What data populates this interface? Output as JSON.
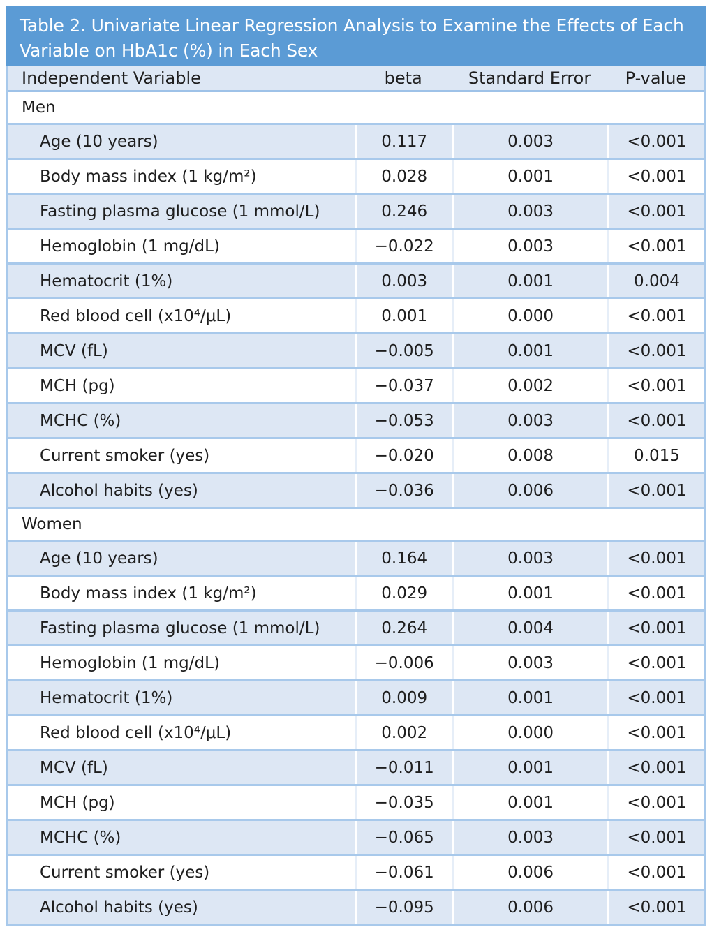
{
  "table": {
    "title": "Table 2. Univariate Linear Regression Analysis to Examine the Effects of Each Variable on HbA1c (%) in Each Sex",
    "headers": [
      "Independent Variable",
      "beta",
      "Standard Error",
      "P-value"
    ],
    "sections": [
      {
        "label": "Men",
        "rows": [
          {
            "variable": "Age (10 years)",
            "beta": "0.117",
            "se": "0.003",
            "p": "<0.001"
          },
          {
            "variable": "Body mass index (1 kg/m²)",
            "beta": "0.028",
            "se": "0.001",
            "p": "<0.001"
          },
          {
            "variable": "Fasting plasma glucose (1 mmol/L)",
            "beta": "0.246",
            "se": "0.003",
            "p": "<0.001"
          },
          {
            "variable": "Hemoglobin (1 mg/dL)",
            "beta": "−0.022",
            "se": "0.003",
            "p": "<0.001"
          },
          {
            "variable": "Hematocrit (1%)",
            "beta": "0.003",
            "se": "0.001",
            "p": "0.004"
          },
          {
            "variable": "Red blood cell (x10⁴/μL)",
            "beta": "0.001",
            "se": "0.000",
            "p": "<0.001"
          },
          {
            "variable": "MCV (fL)",
            "beta": "−0.005",
            "se": "0.001",
            "p": "<0.001"
          },
          {
            "variable": "MCH (pg)",
            "beta": "−0.037",
            "se": "0.002",
            "p": "<0.001"
          },
          {
            "variable": "MCHC (%)",
            "beta": "−0.053",
            "se": "0.003",
            "p": "<0.001"
          },
          {
            "variable": "Current smoker (yes)",
            "beta": "−0.020",
            "se": "0.008",
            "p": "0.015"
          },
          {
            "variable": "Alcohol habits (yes)",
            "beta": "−0.036",
            "se": "0.006",
            "p": "<0.001"
          }
        ]
      },
      {
        "label": "Women",
        "rows": [
          {
            "variable": "Age (10 years)",
            "beta": "0.164",
            "se": "0.003",
            "p": "<0.001"
          },
          {
            "variable": "Body mass index (1 kg/m²)",
            "beta": "0.029",
            "se": "0.001",
            "p": "<0.001"
          },
          {
            "variable": "Fasting plasma glucose (1 mmol/L)",
            "beta": "0.264",
            "se": "0.004",
            "p": "<0.001"
          },
          {
            "variable": "Hemoglobin (1 mg/dL)",
            "beta": "−0.006",
            "se": "0.003",
            "p": "<0.001"
          },
          {
            "variable": "Hematocrit (1%)",
            "beta": "0.009",
            "se": "0.001",
            "p": "<0.001"
          },
          {
            "variable": "Red blood cell (x10⁴/μL)",
            "beta": "0.002",
            "se": "0.000",
            "p": "<0.001"
          },
          {
            "variable": "MCV (fL)",
            "beta": "−0.011",
            "se": "0.001",
            "p": "<0.001"
          },
          {
            "variable": "MCH (pg)",
            "beta": "−0.035",
            "se": "0.001",
            "p": "<0.001"
          },
          {
            "variable": "MCHC (%)",
            "beta": "−0.065",
            "se": "0.003",
            "p": "<0.001"
          },
          {
            "variable": "Current smoker (yes)",
            "beta": "−0.061",
            "se": "0.006",
            "p": "<0.001"
          },
          {
            "variable": "Alcohol habits (yes)",
            "beta": "−0.095",
            "se": "0.006",
            "p": "<0.001"
          }
        ]
      }
    ]
  }
}
